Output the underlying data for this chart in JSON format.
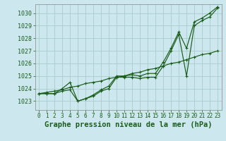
{
  "background_color": "#cce8ee",
  "grid_color": "#aacccc",
  "line_color": "#1a5c1a",
  "marker_color": "#1a5c1a",
  "axis_label_color": "#1a5c1a",
  "tick_label_color": "#1a5c1a",
  "title": "Graphe pression niveau de la mer (hPa)",
  "xlabel_fontsize": 7.5,
  "tick_fontsize": 6.0,
  "xlim": [
    -0.5,
    23.5
  ],
  "ylim": [
    1022.3,
    1030.7
  ],
  "yticks": [
    1023,
    1024,
    1025,
    1026,
    1027,
    1028,
    1029,
    1030
  ],
  "xticks": [
    0,
    1,
    2,
    3,
    4,
    5,
    6,
    7,
    8,
    9,
    10,
    11,
    12,
    13,
    14,
    15,
    16,
    17,
    18,
    19,
    20,
    21,
    22,
    23
  ],
  "line1_x": [
    0,
    1,
    2,
    3,
    4,
    5,
    6,
    7,
    8,
    9,
    10,
    11,
    12,
    13,
    14,
    15,
    16,
    17,
    18,
    19,
    20,
    21,
    22,
    23
  ],
  "line1_y": [
    1023.6,
    1023.6,
    1023.6,
    1023.8,
    1023.9,
    1023.0,
    1023.2,
    1023.4,
    1023.8,
    1024.0,
    1024.9,
    1024.9,
    1024.9,
    1024.8,
    1024.9,
    1024.9,
    1025.8,
    1027.0,
    1028.3,
    1025.0,
    1029.0,
    1029.4,
    1029.7,
    1030.4
  ],
  "line2_x": [
    0,
    1,
    2,
    3,
    4,
    5,
    6,
    7,
    8,
    9,
    10,
    11,
    12,
    13,
    14,
    15,
    16,
    17,
    18,
    19,
    20,
    21,
    22,
    23
  ],
  "line2_y": [
    1023.6,
    1023.7,
    1023.8,
    1023.9,
    1024.1,
    1024.2,
    1024.4,
    1024.5,
    1024.6,
    1024.8,
    1024.9,
    1025.0,
    1025.2,
    1025.3,
    1025.5,
    1025.6,
    1025.8,
    1026.0,
    1026.1,
    1026.3,
    1026.5,
    1026.7,
    1026.8,
    1027.0
  ],
  "line3_x": [
    0,
    1,
    2,
    3,
    4,
    5,
    6,
    7,
    8,
    9,
    10,
    11,
    12,
    13,
    14,
    15,
    16,
    17,
    18,
    19,
    20,
    21,
    22,
    23
  ],
  "line3_y": [
    1023.6,
    1023.6,
    1023.6,
    1024.0,
    1024.5,
    1023.0,
    1023.2,
    1023.5,
    1023.9,
    1024.2,
    1025.0,
    1025.0,
    1025.1,
    1025.0,
    1025.2,
    1025.2,
    1026.1,
    1027.2,
    1028.5,
    1027.2,
    1029.3,
    1029.6,
    1030.0,
    1030.5
  ]
}
